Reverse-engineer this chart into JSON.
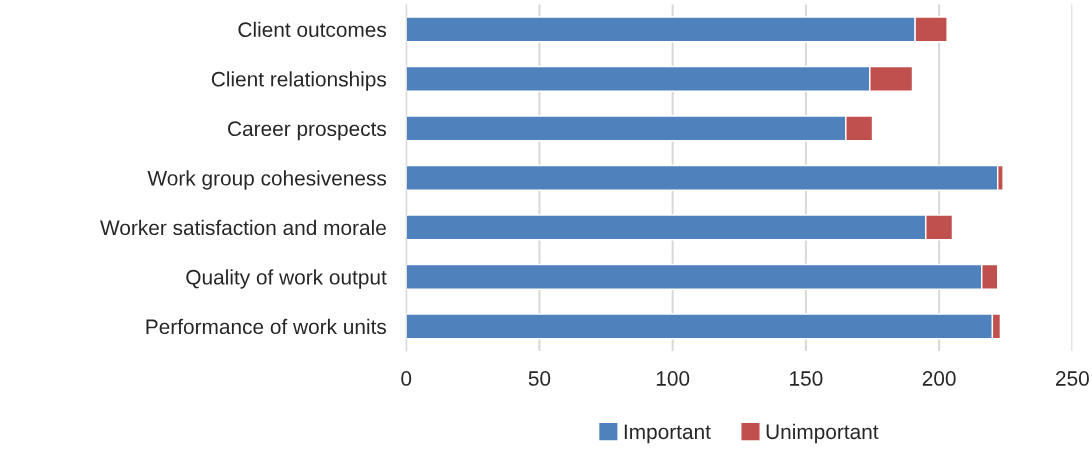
{
  "chart_data": {
    "type": "bar",
    "orientation": "horizontal",
    "stacked": true,
    "categories": [
      "Client outcomes",
      "Client relationships",
      "Career prospects",
      "Work group cohesiveness",
      "Worker satisfaction and morale",
      "Quality of work output",
      "Performance of work units"
    ],
    "series": [
      {
        "name": "Important",
        "color": "#4f81bd",
        "values": [
          191,
          174,
          165,
          222,
          195,
          216,
          220
        ]
      },
      {
        "name": "Unimportant",
        "color": "#c0504d",
        "values": [
          12,
          16,
          10,
          2,
          10,
          6,
          3
        ]
      }
    ],
    "xlim": [
      0,
      250
    ],
    "xticks": [
      0,
      50,
      100,
      150,
      200,
      250
    ],
    "grid": "x",
    "legend": "bottom"
  }
}
